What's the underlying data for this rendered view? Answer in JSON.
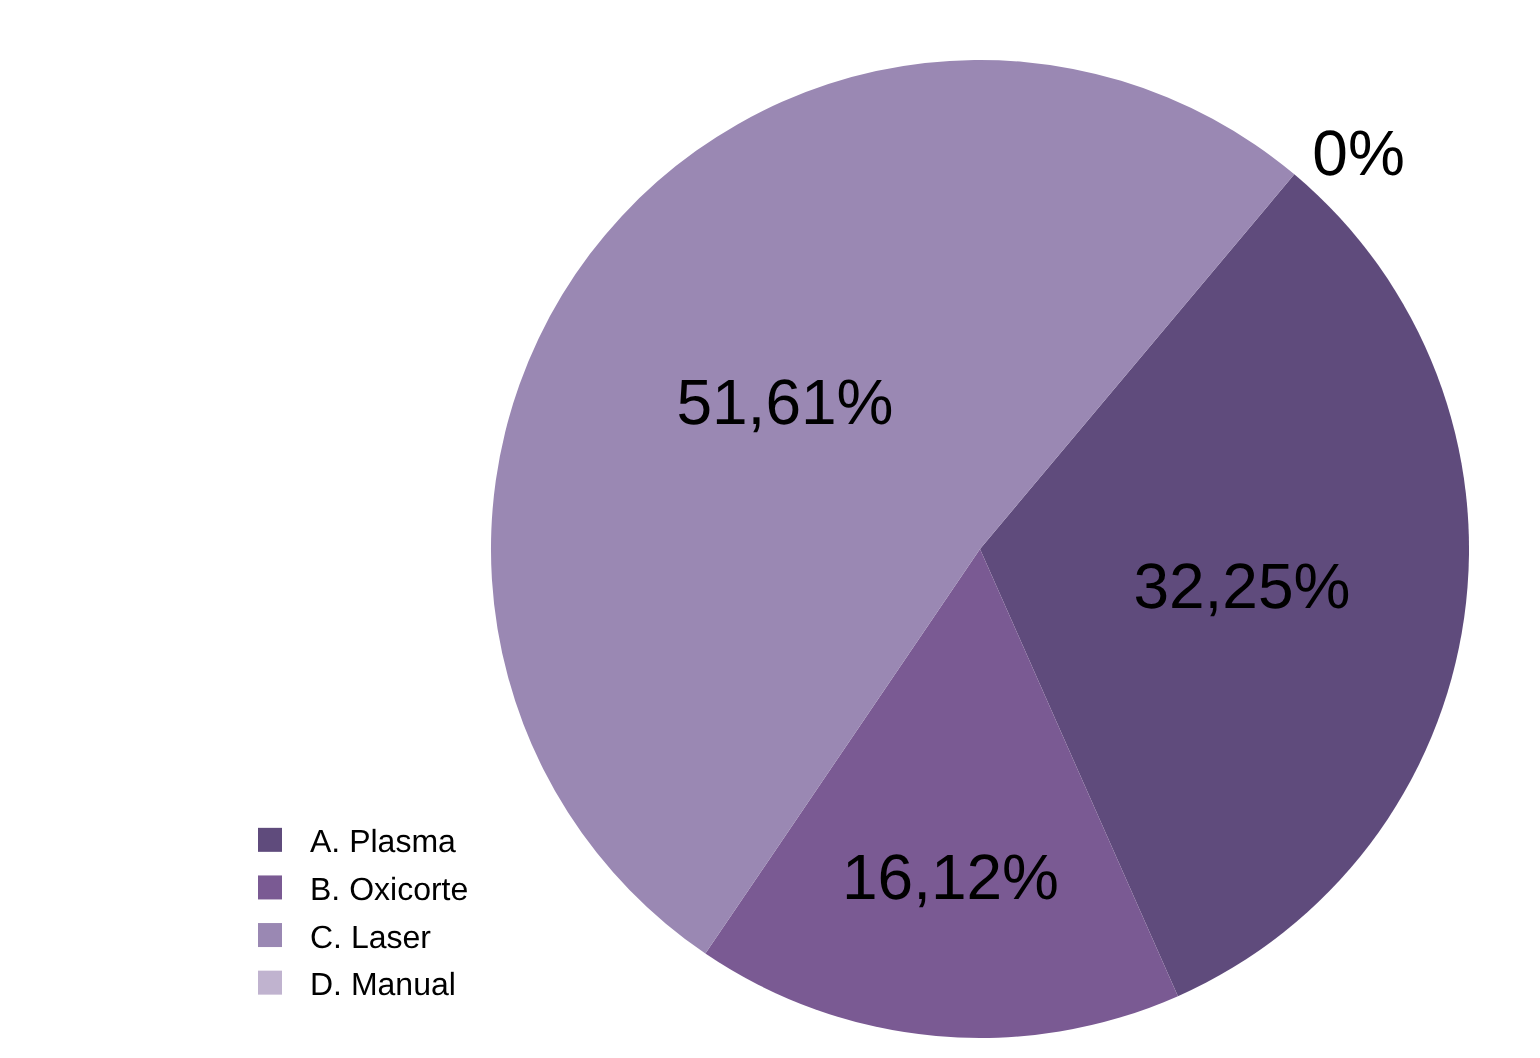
{
  "chart_data": {
    "type": "pie",
    "categories": [
      "A. Plasma",
      "B. Oxicorte",
      "C. Laser",
      "D. Manual"
    ],
    "values": [
      32.25,
      16.12,
      51.61,
      0
    ],
    "colors": [
      "#5f4b7c",
      "#7a5a93",
      "#9a88b3",
      "#c0b3cf"
    ],
    "value_labels": [
      "32,25%",
      "16,12%",
      "51,61%",
      "0%"
    ],
    "legend": "bottom left"
  }
}
